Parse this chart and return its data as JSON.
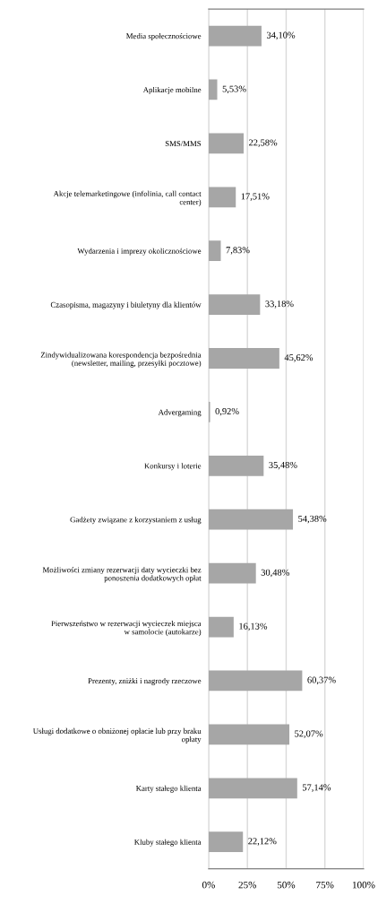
{
  "chart_data": {
    "type": "bar",
    "orientation": "horizontal",
    "categories": [
      "Media społecznościowe",
      "Aplikacje mobilne",
      "SMS/MMS",
      "Akcje telemarketingowe (infolinia, call contact\ncenter)",
      "Wydarzenia i imprezy okolicznościowe",
      "Czasopisma, magazyny i biuletyny dla klientów",
      "Zindywidualizowana korespondencja bezpośrednia\n(newsletter, mailing, przesyłki pocztowe)",
      "Advergaming",
      "Konkursy i loterie",
      "Gadżety związane z korzystaniem z usług",
      "Możliwości zmiany rezerwacji daty wycieczki bez\nponoszenia dodatkowych opłat",
      "Pierwszeństwo w rezerwacji wycieczek miejsca\nw samolocie (autokarze)",
      "Prezenty, zniżki i nagrody rzeczowe",
      "Usługi dodatkowe o obniżonej opłacie lub przy braku\nopłaty",
      "Karty stałego klienta",
      "Kluby stałego klienta"
    ],
    "values": [
      34.1,
      5.53,
      22.58,
      17.51,
      7.83,
      33.18,
      45.62,
      0.92,
      35.48,
      54.38,
      30.48,
      16.13,
      60.37,
      52.07,
      57.14,
      22.12
    ],
    "value_labels": [
      "34,10%",
      "5,53%",
      "22,58%",
      "17,51%",
      "7,83%",
      "33,18%",
      "45,62%",
      "0,92%",
      "35,48%",
      "54,38%",
      "30,48%",
      "16,13%",
      "60,37%",
      "52,07%",
      "57,14%",
      "22,12%"
    ],
    "color": "#a6a6a6",
    "xlim": [
      0,
      100
    ],
    "xticks": [
      {
        "value": 0,
        "label": "0%"
      },
      {
        "value": 25,
        "label": "25%"
      },
      {
        "value": 50,
        "label": "50%"
      },
      {
        "value": 75,
        "label": "75%"
      },
      {
        "value": 100,
        "label": "100%"
      }
    ],
    "grid": "x"
  }
}
